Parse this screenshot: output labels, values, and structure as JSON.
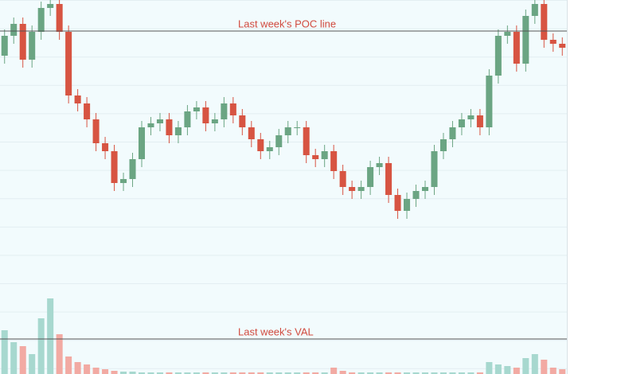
{
  "chart_data": {
    "type": "candlestick",
    "up_color": "#6ba583",
    "down_color": "#d75442",
    "volume_up_color": "#a7d8cf",
    "volume_down_color": "#f2aaa3",
    "line_color": "#555555",
    "label_color": "#d14b3f",
    "ylim": [
      0,
      470
    ],
    "volume_ylim": [
      0,
      100
    ],
    "open": [
      400,
      425,
      440,
      395,
      430,
      460,
      465,
      430,
      350,
      340,
      320,
      290,
      280,
      240,
      245,
      270,
      310,
      315,
      320,
      300,
      310,
      330,
      335,
      315,
      320,
      340,
      325,
      310,
      295,
      280,
      285,
      300,
      310,
      310,
      275,
      270,
      280,
      255,
      235,
      230,
      235,
      260,
      265,
      225,
      205,
      220,
      230,
      235,
      280,
      295,
      310,
      320,
      325,
      310,
      375,
      425,
      430,
      390,
      450,
      465,
      420,
      415
    ],
    "high": [
      433,
      448,
      448,
      438,
      468,
      473,
      473,
      438,
      358,
      348,
      328,
      298,
      288,
      253,
      278,
      318,
      323,
      328,
      328,
      318,
      338,
      343,
      343,
      328,
      348,
      348,
      333,
      318,
      303,
      293,
      308,
      318,
      318,
      318,
      283,
      288,
      288,
      263,
      243,
      243,
      268,
      273,
      273,
      233,
      228,
      238,
      243,
      288,
      303,
      318,
      328,
      333,
      333,
      383,
      433,
      438,
      438,
      458,
      473,
      473,
      428,
      423
    ],
    "low": [
      390,
      415,
      385,
      385,
      420,
      450,
      420,
      340,
      330,
      310,
      280,
      270,
      230,
      230,
      235,
      260,
      300,
      305,
      290,
      290,
      300,
      320,
      305,
      305,
      310,
      315,
      300,
      285,
      270,
      270,
      275,
      290,
      300,
      265,
      260,
      260,
      245,
      225,
      220,
      220,
      225,
      250,
      215,
      195,
      195,
      210,
      220,
      225,
      270,
      285,
      300,
      310,
      300,
      300,
      365,
      415,
      380,
      380,
      440,
      410,
      405,
      400
    ],
    "close": [
      425,
      440,
      395,
      430,
      460,
      465,
      430,
      350,
      340,
      320,
      290,
      280,
      240,
      245,
      270,
      310,
      315,
      320,
      300,
      310,
      330,
      335,
      315,
      320,
      340,
      325,
      310,
      295,
      280,
      285,
      300,
      310,
      310,
      275,
      270,
      280,
      255,
      235,
      230,
      235,
      260,
      265,
      225,
      205,
      220,
      230,
      235,
      280,
      295,
      310,
      320,
      325,
      310,
      375,
      425,
      430,
      390,
      450,
      465,
      420,
      415,
      410
    ],
    "volume": [
      55,
      40,
      35,
      25,
      70,
      95,
      50,
      22,
      15,
      12,
      8,
      6,
      4,
      3,
      3,
      2,
      2,
      2,
      2,
      2,
      2,
      2,
      2,
      2,
      2,
      2,
      2,
      2,
      2,
      2,
      2,
      2,
      2,
      2,
      2,
      2,
      8,
      4,
      2,
      2,
      2,
      2,
      2,
      2,
      2,
      2,
      2,
      2,
      2,
      2,
      2,
      2,
      2,
      15,
      12,
      10,
      8,
      20,
      25,
      18,
      8,
      6
    ],
    "hlines": [
      {
        "value": 431,
        "label": "Last week's POC line"
      },
      {
        "value": 44,
        "label": "Last week's VAL"
      }
    ]
  }
}
